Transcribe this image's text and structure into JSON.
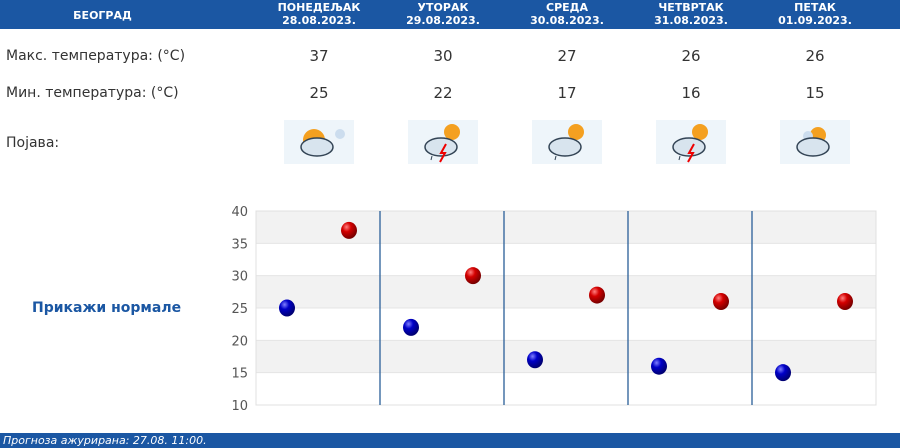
{
  "header": {
    "city": "БЕОГРАД",
    "days": [
      {
        "name": "ПОНЕДЕЉАК",
        "date": "28.08.2023."
      },
      {
        "name": "УТОРАК",
        "date": "29.08.2023."
      },
      {
        "name": "СРЕДА",
        "date": "30.08.2023."
      },
      {
        "name": "ЧЕТВРТАК",
        "date": "31.08.2023."
      },
      {
        "name": "ПЕТАК",
        "date": "01.09.2023."
      }
    ]
  },
  "rows": {
    "max_label": "Макс. температура: (°C)",
    "min_label": "Мин. температура: (°C)",
    "phen_label": "Појава:",
    "max": [
      "37",
      "30",
      "27",
      "26",
      "26"
    ],
    "min": [
      "25",
      "22",
      "17",
      "16",
      "15"
    ],
    "icons": [
      "sun-clouds-icon",
      "thunderstorm-icon",
      "cloud-rain-sun-icon",
      "thunderstorm-icon",
      "partly-cloudy-icon"
    ]
  },
  "show_normals": "Прикажи нормале",
  "footer": "Прогноза ажурирана:  27.08. 11:00.",
  "colors": {
    "brand": "#1b57a3",
    "max": "#d40000",
    "min": "#0000c8"
  },
  "chart_data": {
    "type": "scatter",
    "categories": [
      "28.08.2023.",
      "29.08.2023.",
      "30.08.2023.",
      "31.08.2023.",
      "01.09.2023."
    ],
    "series": [
      {
        "values": [
          37,
          30,
          27,
          26,
          26
        ],
        "color": "#d40000"
      },
      {
        "values": [
          25,
          22,
          17,
          16,
          15
        ],
        "color": "#0000c8"
      }
    ],
    "ylim": [
      10,
      40
    ],
    "yticks": [
      10,
      15,
      20,
      25,
      30,
      35,
      40
    ],
    "grid": true
  }
}
